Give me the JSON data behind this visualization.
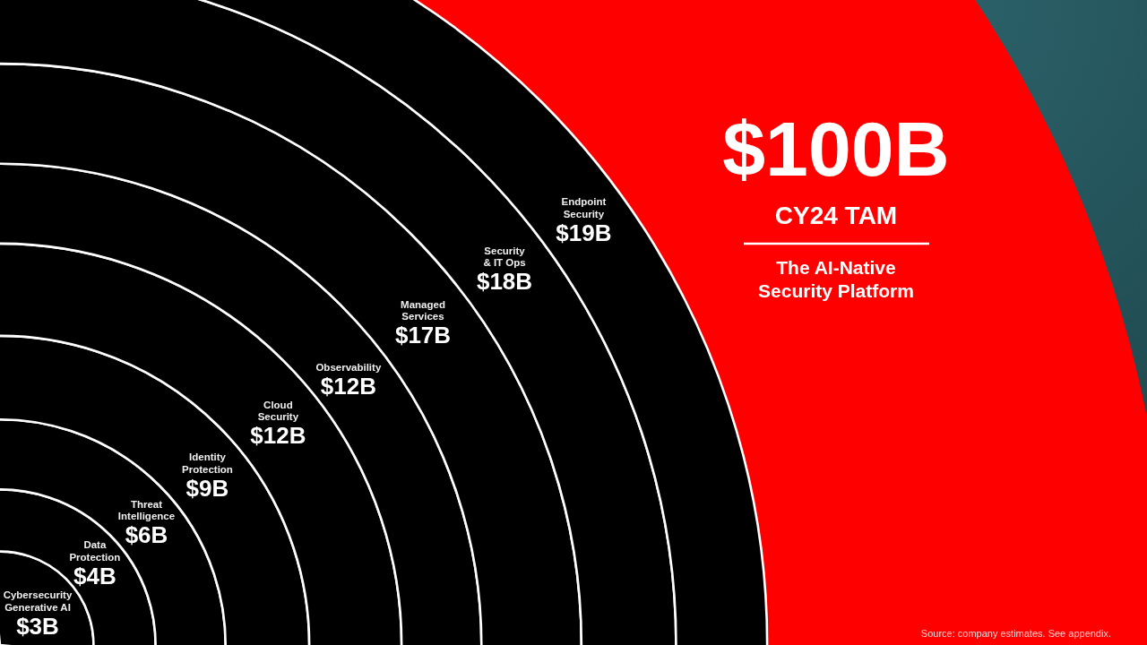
{
  "chart_data": {
    "type": "other",
    "title": "$100B",
    "subtitle": "CY24 TAM",
    "categories": [
      "Cybersecurity Generative AI",
      "Data Protection",
      "Threat Intelligence",
      "Identity Protection",
      "Cloud Security",
      "Observability",
      "Managed Services",
      "Security & IT Ops",
      "Endpoint Security"
    ],
    "values": [
      3,
      4,
      6,
      9,
      12,
      12,
      17,
      18,
      19
    ],
    "value_labels": [
      "$3B",
      "$4B",
      "$6B",
      "$9B",
      "$12B",
      "$12B",
      "$17B",
      "$18B",
      "$19B"
    ],
    "colors": [
      "#000000",
      "#000000",
      "#000000",
      "#000000",
      "#000000",
      "#000000",
      "#000000",
      "#000000",
      "#000000"
    ],
    "annotations": [
      "The AI-Native Security Platform",
      "Source: company estimates. See appendix."
    ]
  }
}
